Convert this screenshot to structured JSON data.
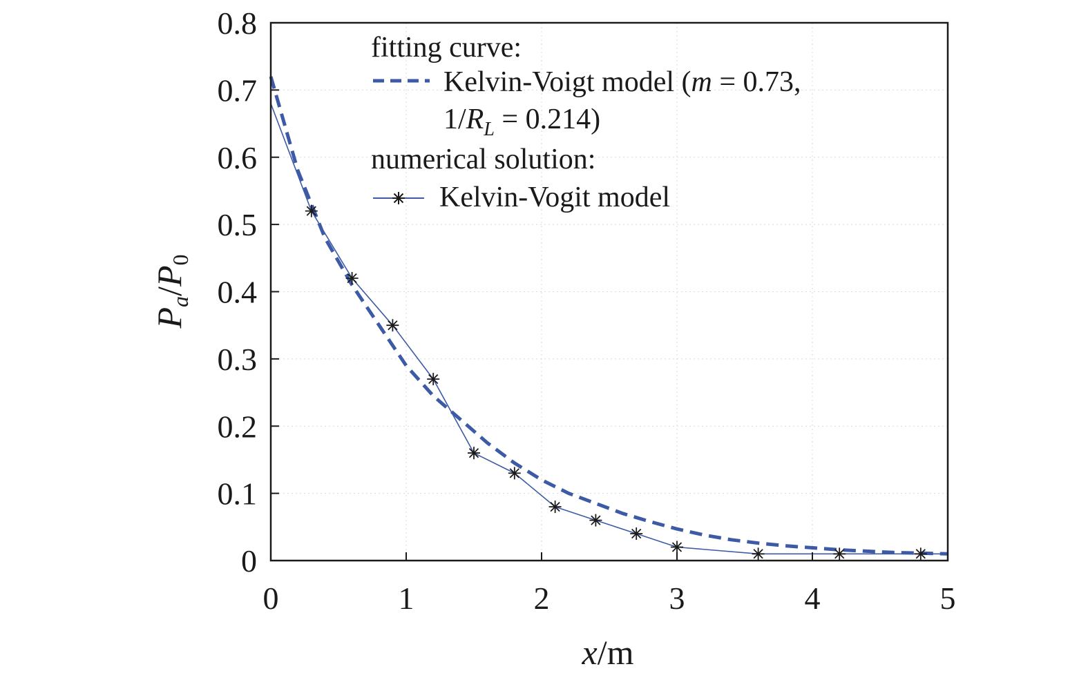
{
  "chart_data": {
    "type": "line",
    "xlabel": {
      "var": "x",
      "unit": "/m"
    },
    "ylabel": {
      "num": "P",
      "num_sub": "a",
      "sep": "/",
      "den": "P",
      "den_sub": "0"
    },
    "xlim": [
      0,
      5
    ],
    "ylim": [
      0,
      0.8
    ],
    "x_ticks": [
      "0",
      "1",
      "2",
      "3",
      "4",
      "5"
    ],
    "y_ticks": [
      "0",
      "0.1",
      "0.2",
      "0.3",
      "0.4",
      "0.5",
      "0.6",
      "0.7",
      "0.8"
    ],
    "grid": "faint dotted",
    "legend_position": "top-right",
    "legend": {
      "fit_header": "fitting curve:",
      "fit_label_line1_prefix": "Kelvin-Voigt model (",
      "fit_label_line1_m": "m",
      "fit_label_line1_suffix": " = 0.73,",
      "fit_label_line2_prefix": "1/",
      "fit_label_line2_R": "R",
      "fit_label_line2_sub": "L",
      "fit_label_line2_suffix": " = 0.214)",
      "num_header": "numerical solution:",
      "num_label": "Kelvin-Vogit model"
    },
    "series": [
      {
        "style": "dashed",
        "color": "#3d5aa6",
        "x": [
          0,
          0.2,
          0.4,
          0.6,
          0.8,
          1.0,
          1.2,
          1.4,
          1.6,
          1.8,
          2.0,
          2.2,
          2.4,
          2.6,
          2.8,
          3.0,
          3.2,
          3.4,
          3.6,
          3.8,
          4.0,
          4.2,
          4.4,
          4.6,
          4.8,
          5.0
        ],
        "y": [
          0.72,
          0.58,
          0.48,
          0.41,
          0.35,
          0.29,
          0.245,
          0.21,
          0.175,
          0.145,
          0.12,
          0.1,
          0.085,
          0.07,
          0.058,
          0.047,
          0.038,
          0.031,
          0.026,
          0.022,
          0.019,
          0.016,
          0.014,
          0.012,
          0.011,
          0.01
        ]
      },
      {
        "style": "solid-with-asterisks",
        "color": "#3d5aa6",
        "marker_color": "#1a1a1a",
        "x": [
          0,
          0.3,
          0.6,
          0.9,
          1.2,
          1.5,
          1.8,
          2.1,
          2.4,
          2.7,
          3.0,
          3.6,
          4.2,
          4.8,
          5.0
        ],
        "y": [
          0.68,
          0.52,
          0.42,
          0.35,
          0.27,
          0.16,
          0.13,
          0.08,
          0.06,
          0.04,
          0.02,
          0.01,
          0.01,
          0.01,
          0.01
        ],
        "marker_indices": [
          1,
          2,
          3,
          4,
          5,
          6,
          7,
          8,
          9,
          10,
          11,
          12,
          13
        ]
      }
    ]
  }
}
